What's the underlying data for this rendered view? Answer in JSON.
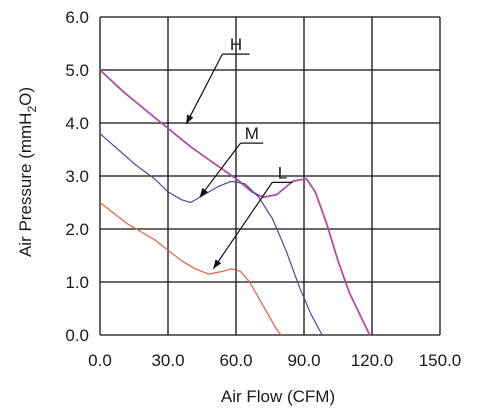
{
  "chart_data": {
    "type": "line",
    "xlabel": "Air Flow (CFM)",
    "ylabel": {
      "main": "Air Pressure (mmH",
      "sub": "2",
      "tail": "O)"
    },
    "xlim": [
      0,
      150
    ],
    "ylim": [
      0,
      6
    ],
    "x_ticks": [
      "0.0",
      "30.0",
      "60.0",
      "90.0",
      "120.0",
      "150.0"
    ],
    "y_ticks": [
      "0.0",
      "1.0",
      "2.0",
      "3.0",
      "4.0",
      "5.0",
      "6.0"
    ],
    "grid": true,
    "series": [
      {
        "name": "H",
        "color": "#b44aa6",
        "points": [
          [
            0,
            5.0
          ],
          [
            10,
            4.6
          ],
          [
            20,
            4.25
          ],
          [
            30,
            3.9
          ],
          [
            40,
            3.55
          ],
          [
            50,
            3.25
          ],
          [
            60,
            2.95
          ],
          [
            67,
            2.7
          ],
          [
            72,
            2.6
          ],
          [
            78,
            2.65
          ],
          [
            85,
            2.9
          ],
          [
            91,
            2.95
          ],
          [
            95,
            2.7
          ],
          [
            100,
            2.1
          ],
          [
            105,
            1.4
          ],
          [
            110,
            0.8
          ],
          [
            115,
            0.35
          ],
          [
            119,
            0.0
          ]
        ]
      },
      {
        "name": "M",
        "color": "#4a4a9a",
        "points": [
          [
            0,
            3.8
          ],
          [
            8,
            3.5
          ],
          [
            16,
            3.2
          ],
          [
            24,
            2.95
          ],
          [
            30,
            2.7
          ],
          [
            36,
            2.55
          ],
          [
            40,
            2.5
          ],
          [
            46,
            2.65
          ],
          [
            52,
            2.8
          ],
          [
            58,
            2.9
          ],
          [
            64,
            2.85
          ],
          [
            70,
            2.6
          ],
          [
            76,
            2.2
          ],
          [
            82,
            1.6
          ],
          [
            88,
            0.9
          ],
          [
            93,
            0.4
          ],
          [
            98,
            0.0
          ]
        ]
      },
      {
        "name": "L",
        "color": "#e06040",
        "points": [
          [
            0,
            2.5
          ],
          [
            6,
            2.3
          ],
          [
            12,
            2.1
          ],
          [
            18,
            1.95
          ],
          [
            24,
            1.8
          ],
          [
            30,
            1.6
          ],
          [
            36,
            1.4
          ],
          [
            42,
            1.25
          ],
          [
            48,
            1.15
          ],
          [
            54,
            1.2
          ],
          [
            58,
            1.25
          ],
          [
            62,
            1.2
          ],
          [
            66,
            1.0
          ],
          [
            70,
            0.7
          ],
          [
            74,
            0.4
          ],
          [
            78,
            0.1
          ],
          [
            80,
            0.0
          ]
        ]
      }
    ],
    "annotations": [
      {
        "label": "H",
        "arrow_from": [
          54,
          5.3
        ],
        "arrow_to": [
          38,
          3.98
        ],
        "bar_end": [
          66,
          5.3
        ]
      },
      {
        "label": "M",
        "arrow_from": [
          62,
          3.62
        ],
        "arrow_to": [
          44,
          2.6
        ],
        "bar_end": [
          72,
          3.62
        ]
      },
      {
        "label": "L",
        "arrow_from": [
          76,
          2.88
        ],
        "arrow_to": [
          50,
          1.25
        ],
        "bar_end": [
          85,
          2.88
        ]
      }
    ]
  }
}
